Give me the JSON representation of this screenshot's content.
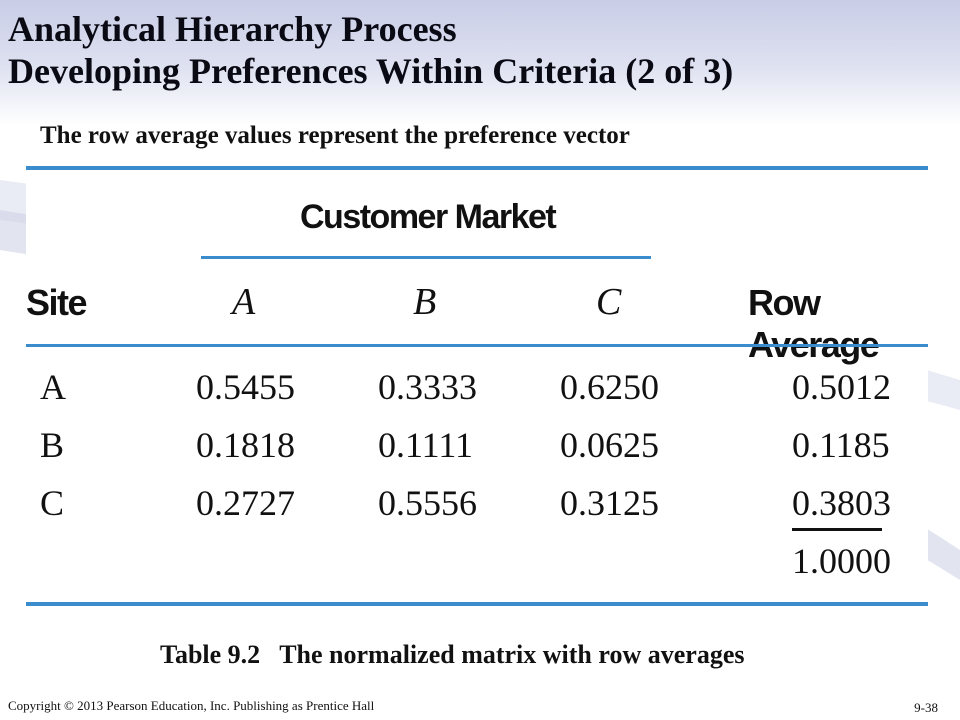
{
  "slide": {
    "title_line1": "Analytical Hierarchy Process",
    "title_line2": "Developing Preferences Within Criteria (2 of 3)",
    "subtitle": "The row average values represent the preference vector"
  },
  "table": {
    "group_header": "Customer Market",
    "columns": [
      "Site",
      "A",
      "B",
      "C",
      "Row Average"
    ],
    "rows": [
      [
        "A",
        "0.5455",
        "0.3333",
        "0.6250",
        "0.5012"
      ],
      [
        "B",
        "0.1818",
        "0.1111",
        "0.0625",
        "0.1185"
      ],
      [
        "C",
        "0.2727",
        "0.5556",
        "0.3125",
        "0.3803"
      ]
    ],
    "total": "1.0000",
    "rule_color": "#3a8ccc"
  },
  "caption": "Table 9.2   The normalized matrix with row averages",
  "footer": {
    "copyright": "Copyright © 2013 Pearson Education, Inc. Publishing as Prentice Hall",
    "page_number": "9-38"
  }
}
